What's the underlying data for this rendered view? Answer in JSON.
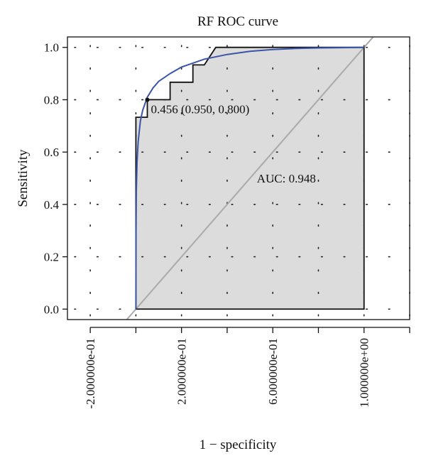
{
  "chart_data": {
    "type": "line",
    "title": "RF ROC curve",
    "xlabel": "1 − specificity",
    "ylabel": "Sensitivity",
    "xlim": [
      -0.3,
      1.2
    ],
    "ylim": [
      -0.04,
      1.04
    ],
    "x_ticks": [
      -0.2,
      0.0,
      0.2,
      0.4,
      0.6,
      0.8,
      1.0,
      1.2
    ],
    "x_tick_labels": [
      "-2.000000e-01",
      "",
      "2.000000e-01",
      "",
      "6.000000e-01",
      "",
      "1.000000e+00",
      ""
    ],
    "y_ticks": [
      0.0,
      0.2,
      0.4,
      0.6,
      0.8,
      1.0
    ],
    "y_tick_labels": [
      "0.0",
      "0.2",
      "0.4",
      "0.6",
      "0.8",
      "1.0"
    ],
    "grid": "dotted",
    "series": [
      {
        "kind": "empirical-step",
        "color": "#111111",
        "x": [
          0.0,
          0.0,
          0.05,
          0.05,
          0.15,
          0.15,
          0.25,
          0.25,
          0.3,
          0.35,
          1.0
        ],
        "y": [
          0.0,
          0.733,
          0.733,
          0.8,
          0.8,
          0.867,
          0.867,
          0.933,
          0.933,
          1.0,
          1.0
        ]
      },
      {
        "kind": "smoothed",
        "color": "#3a55a8",
        "x": [
          0.0,
          0.0005,
          0.002,
          0.005,
          0.01,
          0.02,
          0.03,
          0.05,
          0.075,
          0.1,
          0.15,
          0.2,
          0.3,
          0.4,
          0.5,
          0.6,
          0.7,
          0.8,
          0.9,
          1.0
        ],
        "y": [
          0.0,
          0.3,
          0.45,
          0.56,
          0.64,
          0.72,
          0.76,
          0.81,
          0.845,
          0.87,
          0.9,
          0.925,
          0.955,
          0.973,
          0.985,
          0.992,
          0.996,
          0.998,
          0.999,
          1.0
        ]
      },
      {
        "kind": "diagonal",
        "color": "#aaaaaa",
        "x": [
          -0.04,
          1.2
        ],
        "y": [
          -0.04,
          1.2
        ]
      }
    ],
    "auc_fill_color": "#dcdcdc",
    "threshold_point": {
      "x": 0.05,
      "y": 0.8,
      "label": "0.456 (0.950, 0.800)"
    },
    "auc_text": {
      "x": 0.53,
      "y": 0.5,
      "label": "AUC: 0.948"
    }
  }
}
